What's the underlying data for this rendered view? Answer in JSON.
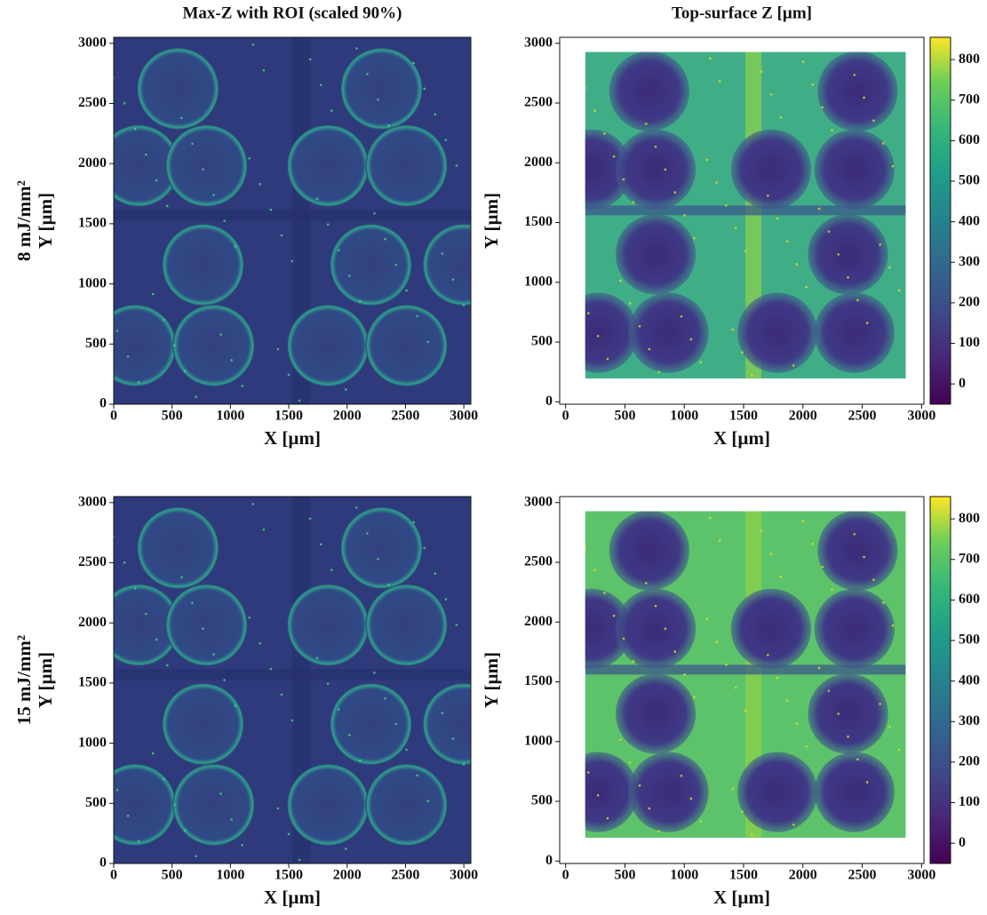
{
  "chart_data": [
    {
      "type": "image",
      "title": "Max-Z with ROI (scaled 90%)",
      "ylabel": [
        "8 mJ/mm²",
        "Y [µm]"
      ],
      "xlabel": "X [µm]",
      "xlim": [
        0,
        3060
      ],
      "ylim": [
        0,
        3050
      ],
      "xticks": [
        0,
        500,
        1000,
        1500,
        2000,
        2500,
        3000
      ],
      "yticks": [
        0,
        500,
        1000,
        1500,
        2000,
        2500,
        3000
      ],
      "colormap": "viridis"
    },
    {
      "type": "image",
      "title": "Top-surface Z [µm]",
      "ylabel": [
        "Y [µm]"
      ],
      "xlabel": "X [µm]",
      "xlim": [
        -50,
        3020
      ],
      "ylim": [
        -20,
        3050
      ],
      "xticks": [
        0,
        500,
        1000,
        1500,
        2000,
        2500,
        3000
      ],
      "yticks": [
        0,
        500,
        1000,
        1500,
        2000,
        2500,
        3000
      ],
      "colormap": "viridis",
      "colorbar": {
        "lim": [
          -50,
          855
        ],
        "ticks": [
          0,
          100,
          200,
          300,
          400,
          500,
          600,
          700,
          800
        ]
      }
    },
    {
      "type": "image",
      "ylabel": [
        "15 mJ/mm²",
        "Y [µm]"
      ],
      "xlabel": "X [µm]",
      "xlim": [
        0,
        3060
      ],
      "ylim": [
        0,
        3050
      ],
      "xticks": [
        0,
        500,
        1000,
        1500,
        2000,
        2500,
        3000
      ],
      "yticks": [
        0,
        500,
        1000,
        1500,
        2000,
        2500,
        3000
      ],
      "colormap": "viridis"
    },
    {
      "type": "image",
      "ylabel": [
        "Y [µm]"
      ],
      "xlabel": "X [µm]",
      "xlim": [
        -50,
        3020
      ],
      "ylim": [
        -20,
        3050
      ],
      "xticks": [
        0,
        500,
        1000,
        1500,
        2000,
        2500,
        3000
      ],
      "yticks": [
        0,
        500,
        1000,
        1500,
        2000,
        2500,
        3000
      ],
      "colormap": "viridis",
      "colorbar": {
        "lim": [
          -50,
          855
        ],
        "ticks": [
          0,
          100,
          200,
          300,
          400,
          500,
          600,
          700,
          800
        ]
      }
    }
  ]
}
